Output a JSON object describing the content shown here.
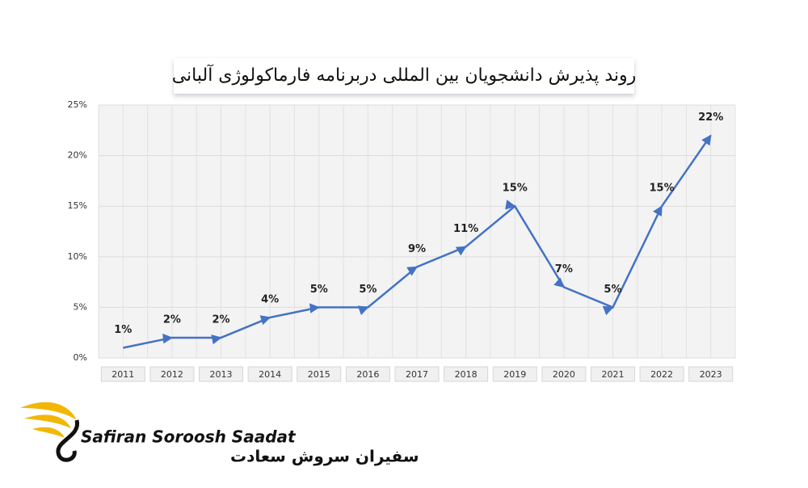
{
  "chart_data": {
    "type": "line",
    "title": "روند پذیرش دانشجویان بین المللی دربرنامه فارماکولوژی آلبانی",
    "categories": [
      "2011",
      "2012",
      "2013",
      "2014",
      "2015",
      "2016",
      "2017",
      "2018",
      "2019",
      "2020",
      "2021",
      "2022",
      "2023"
    ],
    "values": [
      1,
      2,
      2,
      4,
      5,
      5,
      9,
      11,
      15,
      7,
      5,
      15,
      22
    ],
    "value_labels": [
      "1%",
      "2%",
      "2%",
      "4%",
      "5%",
      "5%",
      "9%",
      "11%",
      "15%",
      "7%",
      "5%",
      "15%",
      "22%"
    ],
    "color": "#4472c4",
    "ylim": [
      0,
      25
    ],
    "yticks": [
      {
        "value": 0,
        "label": "0%"
      },
      {
        "value": 5,
        "label": "5%"
      },
      {
        "value": 10,
        "label": "10%"
      },
      {
        "value": 15,
        "label": "15%"
      },
      {
        "value": 20,
        "label": "20%"
      },
      {
        "value": 25,
        "label": "25%"
      }
    ],
    "grid": true
  },
  "logo": {
    "name_en": "Safiran Soroosh Saadat",
    "name_fa": "سفیران سروش سعادت"
  }
}
